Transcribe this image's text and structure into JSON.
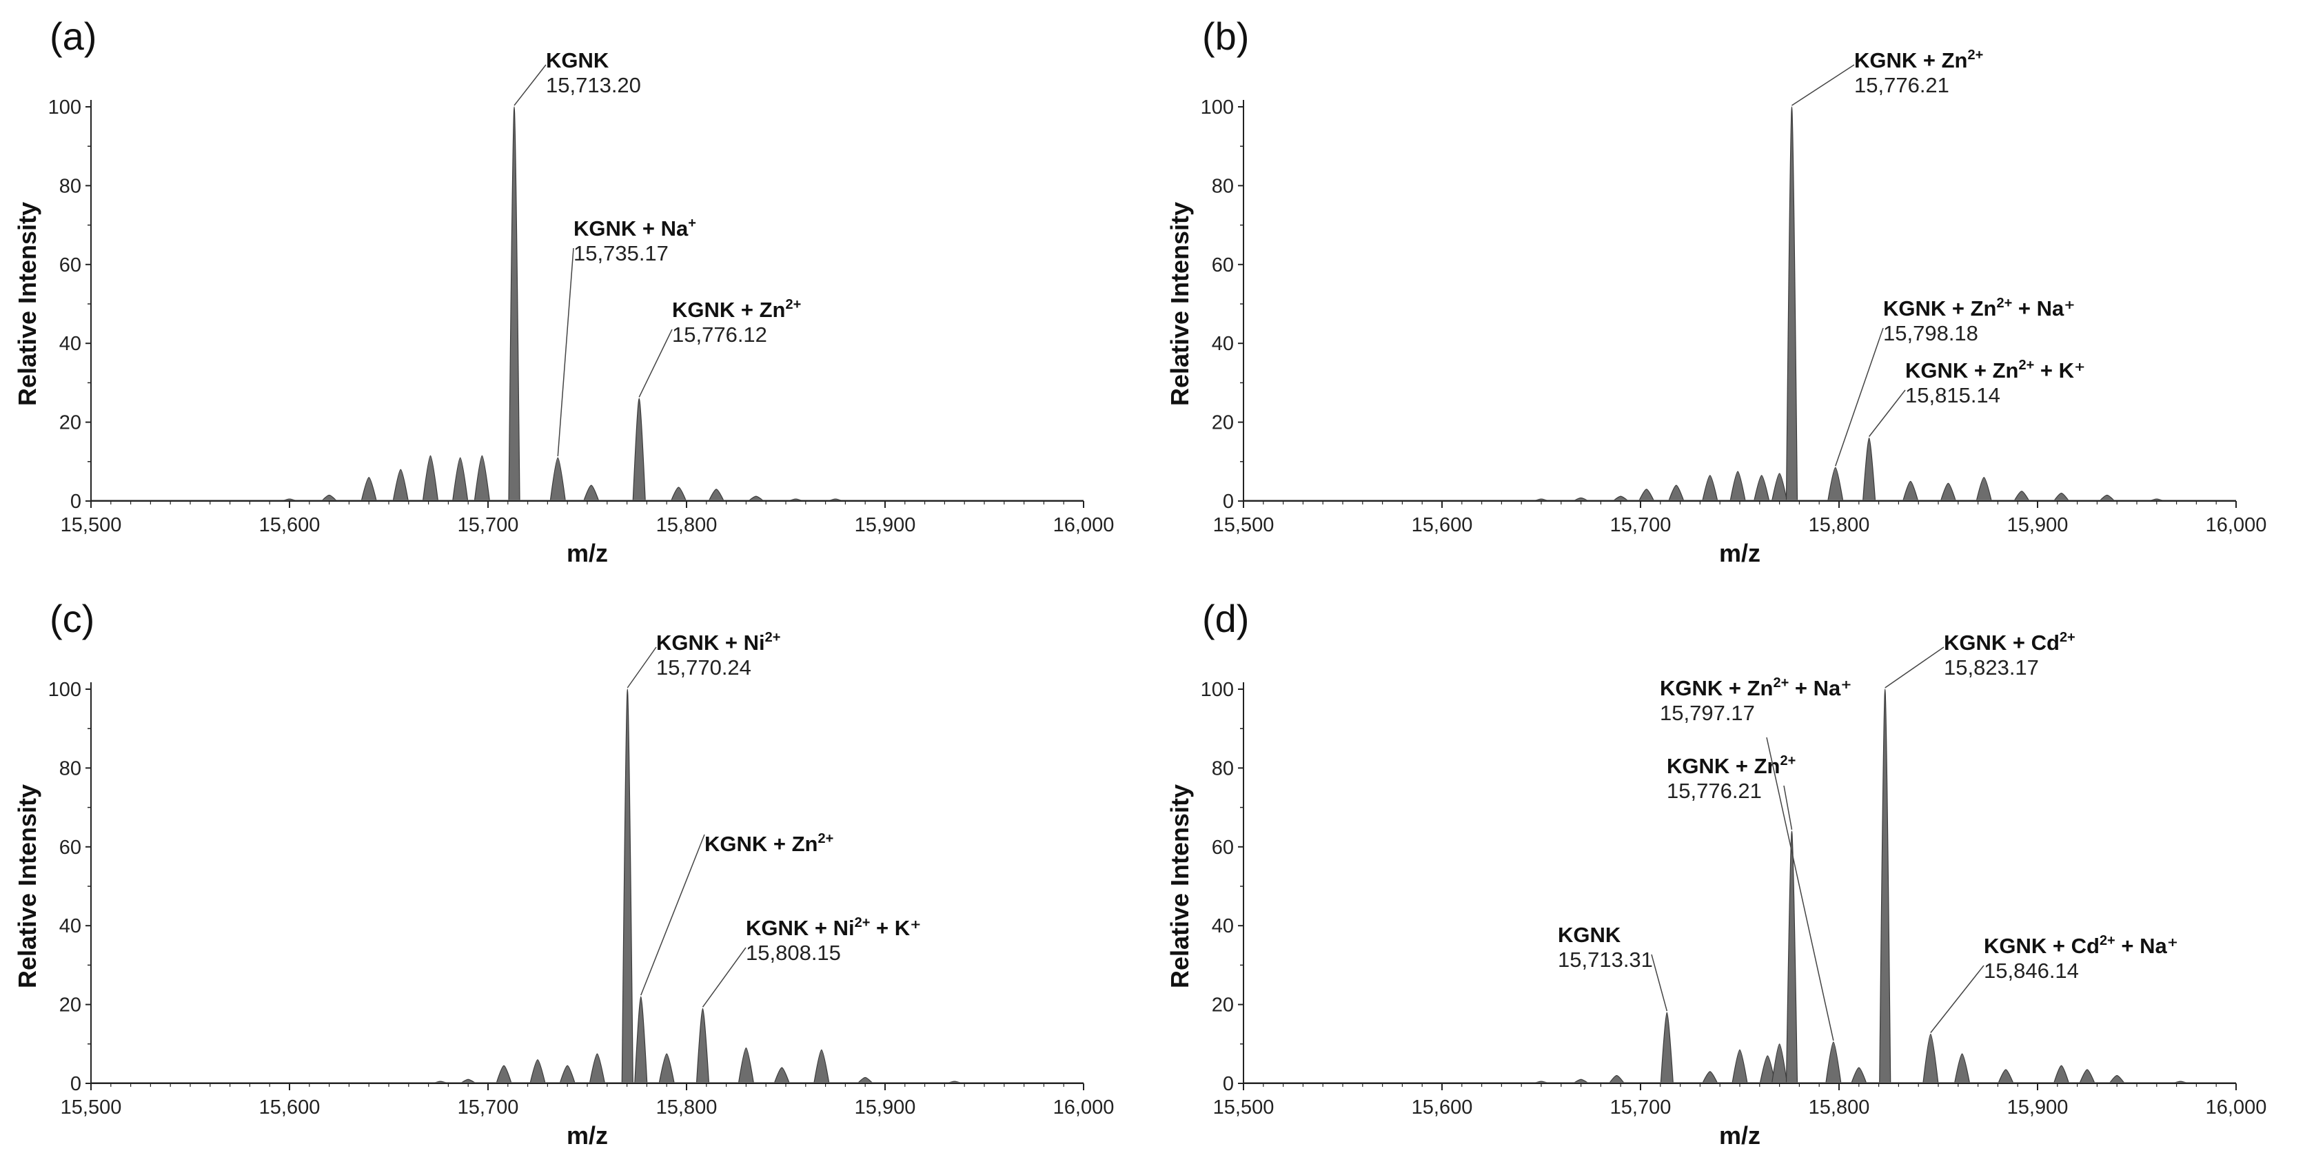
{
  "colors": {
    "peak_fill": "#6d6d6d",
    "peak_edge": "#3a3a3a",
    "axis": "#222222",
    "leader": "#444444"
  },
  "chart_data": [
    {
      "type": "line",
      "panel_label": "(a)",
      "xlabel": "m/z",
      "ylabel": "Relative Intensity",
      "xlim": [
        15500,
        16000
      ],
      "ylim": [
        0,
        100
      ],
      "xticks": [
        "15,500",
        "15,600",
        "15,700",
        "15,800",
        "15,900",
        "16,000"
      ],
      "yticks": [
        "0",
        "20",
        "40",
        "60",
        "80",
        "100"
      ],
      "peaks": [
        {
          "mz": 15600,
          "y": 0.5
        },
        {
          "mz": 15620,
          "y": 1.5
        },
        {
          "mz": 15640,
          "y": 6
        },
        {
          "mz": 15656,
          "y": 8
        },
        {
          "mz": 15671,
          "y": 11.5
        },
        {
          "mz": 15686,
          "y": 11
        },
        {
          "mz": 15697,
          "y": 11.5
        },
        {
          "mz": 15713.2,
          "y": 100
        },
        {
          "mz": 15735.17,
          "y": 11
        },
        {
          "mz": 15752,
          "y": 4
        },
        {
          "mz": 15776.12,
          "y": 26
        },
        {
          "mz": 15796,
          "y": 3.5
        },
        {
          "mz": 15815,
          "y": 3
        },
        {
          "mz": 15835,
          "y": 1.2
        },
        {
          "mz": 15855,
          "y": 0.5
        },
        {
          "mz": 15875,
          "y": 0.5
        }
      ],
      "annotations": [
        {
          "name": "KGNK",
          "sup": "",
          "tail": "",
          "value": "15,713.20",
          "mz": 15713.2,
          "y": 100
        },
        {
          "name": "KGNK + Na",
          "sup": "+",
          "tail": "",
          "value": "15,735.17",
          "mz": 15735.17,
          "y": 11
        },
        {
          "name": "KGNK + Zn",
          "sup": "2+",
          "tail": "",
          "value": "15,776.12",
          "mz": 15776.12,
          "y": 26
        }
      ]
    },
    {
      "type": "line",
      "panel_label": "(b)",
      "xlabel": "m/z",
      "ylabel": "Relative Intensity",
      "xlim": [
        15500,
        16000
      ],
      "ylim": [
        0,
        100
      ],
      "xticks": [
        "15,500",
        "15,600",
        "15,700",
        "15,800",
        "15,900",
        "16,000"
      ],
      "yticks": [
        "0",
        "20",
        "40",
        "60",
        "80",
        "100"
      ],
      "peaks": [
        {
          "mz": 15650,
          "y": 0.5
        },
        {
          "mz": 15670,
          "y": 0.8
        },
        {
          "mz": 15690,
          "y": 1.2
        },
        {
          "mz": 15703,
          "y": 3
        },
        {
          "mz": 15718,
          "y": 4
        },
        {
          "mz": 15735,
          "y": 6.5
        },
        {
          "mz": 15749,
          "y": 7.5
        },
        {
          "mz": 15761,
          "y": 6.5
        },
        {
          "mz": 15770,
          "y": 7
        },
        {
          "mz": 15776.21,
          "y": 100
        },
        {
          "mz": 15798.18,
          "y": 8.5
        },
        {
          "mz": 15815.14,
          "y": 16
        },
        {
          "mz": 15836,
          "y": 5
        },
        {
          "mz": 15855,
          "y": 4.5
        },
        {
          "mz": 15873,
          "y": 6
        },
        {
          "mz": 15892,
          "y": 2.5
        },
        {
          "mz": 15912,
          "y": 2
        },
        {
          "mz": 15935,
          "y": 1.5
        },
        {
          "mz": 15960,
          "y": 0.5
        }
      ],
      "annotations": [
        {
          "name": "KGNK + Zn",
          "sup": "2+",
          "tail": "",
          "value": "15,776.21",
          "mz": 15776.21,
          "y": 100
        },
        {
          "name": "KGNK + Zn",
          "sup": "2+",
          "tail": " + Na⁺",
          "value": "15,798.18",
          "mz": 15798.18,
          "y": 8.5
        },
        {
          "name": "KGNK + Zn",
          "sup": "2+",
          "tail": " + K⁺",
          "value": "15,815.14",
          "mz": 15815.14,
          "y": 16
        }
      ]
    },
    {
      "type": "line",
      "panel_label": "(c)",
      "xlabel": "m/z",
      "ylabel": "Relative Intensity",
      "xlim": [
        15500,
        16000
      ],
      "ylim": [
        0,
        100
      ],
      "xticks": [
        "15,500",
        "15,600",
        "15,700",
        "15,800",
        "15,900",
        "16,000"
      ],
      "yticks": [
        "0",
        "20",
        "40",
        "60",
        "80",
        "100"
      ],
      "peaks": [
        {
          "mz": 15676,
          "y": 0.5
        },
        {
          "mz": 15690,
          "y": 1
        },
        {
          "mz": 15708,
          "y": 4.5
        },
        {
          "mz": 15725,
          "y": 6
        },
        {
          "mz": 15740,
          "y": 4.5
        },
        {
          "mz": 15755,
          "y": 7.5
        },
        {
          "mz": 15770.24,
          "y": 100
        },
        {
          "mz": 15777,
          "y": 22
        },
        {
          "mz": 15790,
          "y": 7.5
        },
        {
          "mz": 15808.15,
          "y": 19
        },
        {
          "mz": 15830,
          "y": 9
        },
        {
          "mz": 15848,
          "y": 4
        },
        {
          "mz": 15868,
          "y": 8.5
        },
        {
          "mz": 15890,
          "y": 1.5
        },
        {
          "mz": 15935,
          "y": 0.5
        }
      ],
      "annotations": [
        {
          "name": "KGNK + Ni",
          "sup": "2+",
          "tail": "",
          "value": "15,770.24",
          "mz": 15770.24,
          "y": 100
        },
        {
          "name": "KGNK + Zn",
          "sup": "2+",
          "tail": "",
          "value": "",
          "mz": 15777,
          "y": 22
        },
        {
          "name": "KGNK + Ni",
          "sup": "2+",
          "tail": " + K⁺",
          "value": "15,808.15",
          "mz": 15808.15,
          "y": 19
        }
      ]
    },
    {
      "type": "line",
      "panel_label": "(d)",
      "xlabel": "m/z",
      "ylabel": "Relative Intensity",
      "xlim": [
        15500,
        16000
      ],
      "ylim": [
        0,
        100
      ],
      "xticks": [
        "15,500",
        "15,600",
        "15,700",
        "15,800",
        "15,900",
        "16,000"
      ],
      "yticks": [
        "0",
        "20",
        "40",
        "60",
        "80",
        "100"
      ],
      "peaks": [
        {
          "mz": 15650,
          "y": 0.5
        },
        {
          "mz": 15670,
          "y": 1
        },
        {
          "mz": 15688,
          "y": 2
        },
        {
          "mz": 15713.31,
          "y": 18
        },
        {
          "mz": 15735,
          "y": 3
        },
        {
          "mz": 15750,
          "y": 8.5
        },
        {
          "mz": 15764,
          "y": 7
        },
        {
          "mz": 15770,
          "y": 10
        },
        {
          "mz": 15776.21,
          "y": 64
        },
        {
          "mz": 15797.17,
          "y": 10.5
        },
        {
          "mz": 15810,
          "y": 4
        },
        {
          "mz": 15823.17,
          "y": 100
        },
        {
          "mz": 15846.14,
          "y": 12.5
        },
        {
          "mz": 15862,
          "y": 7.5
        },
        {
          "mz": 15884,
          "y": 3.5
        },
        {
          "mz": 15912,
          "y": 4.5
        },
        {
          "mz": 15925,
          "y": 3.5
        },
        {
          "mz": 15940,
          "y": 2
        },
        {
          "mz": 15972,
          "y": 0.5
        }
      ],
      "annotations": [
        {
          "name": "KGNK",
          "sup": "",
          "tail": "",
          "value": "15,713.31",
          "mz": 15713.31,
          "y": 18
        },
        {
          "name": "KGNK + Zn",
          "sup": "2+",
          "tail": "",
          "value": "15,776.21",
          "mz": 15776.21,
          "y": 64
        },
        {
          "name": "KGNK + Zn",
          "sup": "2+",
          "tail": " + Na⁺",
          "value": "15,797.17",
          "mz": 15797.17,
          "y": 10.5
        },
        {
          "name": "KGNK + Cd",
          "sup": "2+",
          "tail": "",
          "value": "15,823.17",
          "mz": 15823.17,
          "y": 100
        },
        {
          "name": "KGNK + Cd",
          "sup": "2+",
          "tail": " + Na⁺",
          "value": "15,846.14",
          "mz": 15846.14,
          "y": 12.5
        }
      ]
    }
  ]
}
